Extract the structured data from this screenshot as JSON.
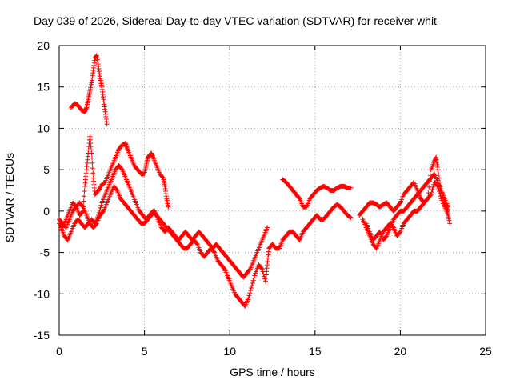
{
  "chart_data": {
    "type": "scatter",
    "title": "Day 039 of 2026, Sidereal Day-to-day VTEC variation (SDTVAR) for receiver whit",
    "xlabel": "GPS time / hours",
    "ylabel": "SDTVAR / TECUs",
    "xlim": [
      0,
      25
    ],
    "ylim": [
      -15,
      20
    ],
    "xticks": [
      "0",
      "5",
      "10",
      "15",
      "20",
      "25"
    ],
    "yticks": [
      "-15",
      "-10",
      "-5",
      "0",
      "5",
      "10",
      "15",
      "20"
    ],
    "grid": true,
    "marker": "+",
    "color": "#ff0000",
    "series": [
      {
        "name": "s1",
        "points": [
          [
            0.7,
            12.5
          ],
          [
            0.9,
            13
          ],
          [
            1.1,
            12.8
          ],
          [
            1.3,
            12.2
          ],
          [
            1.5,
            12
          ],
          [
            1.6,
            12.5
          ],
          [
            1.7,
            13.5
          ],
          [
            1.8,
            14.5
          ],
          [
            1.9,
            15.5
          ],
          [
            2.0,
            17
          ],
          [
            2.1,
            18.5
          ],
          [
            2.2,
            18.8
          ],
          [
            2.3,
            17.5
          ],
          [
            2.4,
            16
          ],
          [
            2.5,
            15
          ],
          [
            2.6,
            13.5
          ],
          [
            2.7,
            12
          ],
          [
            2.8,
            10.5
          ]
        ]
      },
      {
        "name": "s2",
        "points": [
          [
            0,
            -1.5
          ],
          [
            0.2,
            -2
          ],
          [
            0.4,
            -1
          ],
          [
            0.6,
            0
          ],
          [
            0.8,
            1
          ],
          [
            1.0,
            0.5
          ],
          [
            1.2,
            -0.5
          ],
          [
            1.4,
            0
          ],
          [
            1.5,
            3
          ],
          [
            1.6,
            5
          ],
          [
            1.7,
            7
          ],
          [
            1.8,
            9
          ],
          [
            1.9,
            7
          ],
          [
            2.0,
            4
          ],
          [
            2.1,
            2
          ],
          [
            2.3,
            2.5
          ],
          [
            2.5,
            3.2
          ],
          [
            2.7,
            3.5
          ],
          [
            2.9,
            4.5
          ],
          [
            3.1,
            5.5
          ],
          [
            3.3,
            6.5
          ],
          [
            3.5,
            7.5
          ],
          [
            3.7,
            8
          ],
          [
            3.9,
            8.2
          ],
          [
            4.0,
            7.5
          ],
          [
            4.2,
            6.5
          ],
          [
            4.4,
            5.5
          ],
          [
            4.6,
            5
          ],
          [
            4.8,
            4.5
          ],
          [
            5.0,
            4.5
          ],
          [
            5.1,
            5.5
          ],
          [
            5.2,
            6.5
          ],
          [
            5.4,
            7
          ],
          [
            5.5,
            6.5
          ],
          [
            5.7,
            5.5
          ],
          [
            5.9,
            4.5
          ],
          [
            6.1,
            4
          ],
          [
            6.2,
            3
          ],
          [
            6.3,
            1.5
          ],
          [
            6.4,
            0.5
          ]
        ]
      },
      {
        "name": "s3",
        "points": [
          [
            0.1,
            -2
          ],
          [
            0.3,
            -3
          ],
          [
            0.5,
            -3.5
          ],
          [
            0.7,
            -2.5
          ],
          [
            0.9,
            -1.5
          ],
          [
            1.1,
            -1
          ],
          [
            1.3,
            -1.5
          ],
          [
            1.5,
            -2
          ],
          [
            1.7,
            -1.5
          ],
          [
            1.9,
            -1
          ],
          [
            2.1,
            -1.5
          ],
          [
            2.3,
            -0.5
          ],
          [
            2.5,
            1
          ],
          [
            2.7,
            2
          ],
          [
            2.9,
            3
          ],
          [
            3.1,
            4
          ],
          [
            3.3,
            5
          ],
          [
            3.5,
            5.5
          ],
          [
            3.7,
            5
          ],
          [
            3.9,
            4
          ],
          [
            4.1,
            3
          ],
          [
            4.3,
            2
          ],
          [
            4.5,
            1
          ],
          [
            4.7,
            0
          ],
          [
            4.9,
            -0.5
          ],
          [
            5.1,
            -1
          ],
          [
            5.3,
            -0.5
          ],
          [
            5.5,
            0
          ],
          [
            5.7,
            -0.5
          ],
          [
            5.9,
            -1
          ],
          [
            6.1,
            -1.5
          ],
          [
            6.3,
            -2
          ],
          [
            6.5,
            -2.5
          ],
          [
            6.7,
            -3
          ],
          [
            6.9,
            -3.5
          ],
          [
            7.1,
            -4
          ],
          [
            7.3,
            -4.5
          ],
          [
            7.5,
            -4.5
          ],
          [
            7.7,
            -4
          ],
          [
            7.9,
            -3.5
          ],
          [
            8.1,
            -4
          ],
          [
            8.3,
            -5
          ],
          [
            8.5,
            -5.5
          ],
          [
            8.7,
            -5
          ],
          [
            8.9,
            -4.5
          ],
          [
            9.1,
            -5
          ],
          [
            9.3,
            -6
          ],
          [
            9.5,
            -6.5
          ],
          [
            9.7,
            -7
          ],
          [
            9.9,
            -8
          ],
          [
            10.1,
            -9
          ],
          [
            10.3,
            -10
          ],
          [
            10.5,
            -10.5
          ],
          [
            10.7,
            -11
          ],
          [
            10.9,
            -11.5
          ],
          [
            11.1,
            -10.5
          ],
          [
            11.3,
            -9
          ],
          [
            11.5,
            -7.5
          ],
          [
            11.7,
            -6.5
          ],
          [
            11.9,
            -7
          ],
          [
            12.1,
            -8.5
          ],
          [
            12.2,
            -6.5
          ],
          [
            12.3,
            -4.5
          ],
          [
            12.5,
            -4
          ],
          [
            12.7,
            -4.5
          ],
          [
            12.9,
            -4.5
          ],
          [
            13.1,
            -3.5
          ],
          [
            13.3,
            -3
          ],
          [
            13.5,
            -2.5
          ],
          [
            13.7,
            -2.5
          ],
          [
            13.9,
            -3
          ],
          [
            14.1,
            -3.5
          ],
          [
            14.3,
            -2.5
          ],
          [
            14.5,
            -2
          ],
          [
            14.7,
            -1.5
          ],
          [
            14.9,
            -1
          ],
          [
            15.1,
            -0.5
          ],
          [
            15.3,
            -1
          ],
          [
            15.5,
            -1
          ],
          [
            15.7,
            -0.5
          ],
          [
            15.9,
            0
          ],
          [
            16.1,
            0.5
          ],
          [
            16.3,
            0.8
          ],
          [
            16.5,
            0.5
          ],
          [
            16.7,
            0
          ],
          [
            16.9,
            -0.5
          ],
          [
            17.1,
            -0.8
          ]
        ]
      },
      {
        "name": "s4",
        "points": [
          [
            0,
            -1
          ],
          [
            0.2,
            -1.5
          ],
          [
            0.4,
            -2
          ],
          [
            0.6,
            -1
          ],
          [
            0.8,
            0
          ],
          [
            1.0,
            0.5
          ],
          [
            1.2,
            1
          ],
          [
            1.4,
            0.5
          ],
          [
            1.6,
            -0.5
          ],
          [
            1.8,
            -1.5
          ],
          [
            2.0,
            -2
          ],
          [
            2.2,
            -1.5
          ],
          [
            2.4,
            -0.5
          ],
          [
            2.6,
            0
          ],
          [
            2.8,
            1
          ],
          [
            3.0,
            2
          ],
          [
            3.2,
            3
          ],
          [
            3.4,
            2.5
          ],
          [
            3.6,
            1.5
          ],
          [
            3.8,
            1
          ],
          [
            4.0,
            0.5
          ],
          [
            4.2,
            0
          ],
          [
            4.4,
            -0.5
          ],
          [
            4.6,
            -1
          ],
          [
            4.8,
            -1.5
          ],
          [
            5.0,
            -1.5
          ],
          [
            5.2,
            -1
          ],
          [
            5.4,
            -0.5
          ],
          [
            5.6,
            0
          ],
          [
            5.8,
            -1
          ],
          [
            6.0,
            -2
          ],
          [
            6.2,
            -2.5
          ],
          [
            6.4,
            -2
          ],
          [
            6.6,
            -2.5
          ],
          [
            6.8,
            -3
          ],
          [
            7.0,
            -3.5
          ],
          [
            7.2,
            -3
          ],
          [
            7.4,
            -2.5
          ],
          [
            7.6,
            -3
          ],
          [
            7.8,
            -3.5
          ],
          [
            8.0,
            -3
          ],
          [
            8.2,
            -2.5
          ],
          [
            8.4,
            -3
          ],
          [
            8.6,
            -3.5
          ],
          [
            8.8,
            -4
          ],
          [
            9.0,
            -4.5
          ],
          [
            9.2,
            -4
          ],
          [
            9.4,
            -4.5
          ],
          [
            9.6,
            -5
          ],
          [
            9.8,
            -5.5
          ],
          [
            10.0,
            -6
          ],
          [
            10.2,
            -6.5
          ],
          [
            10.4,
            -7
          ],
          [
            10.6,
            -7.5
          ],
          [
            10.8,
            -8
          ],
          [
            11.0,
            -7.5
          ],
          [
            11.2,
            -7
          ],
          [
            11.4,
            -6
          ],
          [
            11.6,
            -5
          ],
          [
            11.8,
            -4
          ],
          [
            12.0,
            -3
          ],
          [
            12.2,
            -2
          ]
        ]
      },
      {
        "name": "s5",
        "points": [
          [
            13.1,
            3.8
          ],
          [
            13.3,
            3.5
          ],
          [
            13.5,
            3
          ],
          [
            13.7,
            2.5
          ],
          [
            13.9,
            2
          ],
          [
            14.1,
            1.5
          ],
          [
            14.3,
            0.5
          ],
          [
            14.5,
            0.5
          ],
          [
            14.7,
            1.5
          ],
          [
            14.9,
            2
          ],
          [
            15.1,
            2.5
          ],
          [
            15.3,
            2.8
          ],
          [
            15.5,
            3
          ],
          [
            15.7,
            2.8
          ],
          [
            15.9,
            2.5
          ],
          [
            16.1,
            2.5
          ],
          [
            16.3,
            2.8
          ],
          [
            16.5,
            3
          ],
          [
            16.7,
            3
          ],
          [
            16.9,
            2.8
          ],
          [
            17.1,
            2.8
          ]
        ]
      },
      {
        "name": "s6",
        "points": [
          [
            17.8,
            -1
          ],
          [
            18.0,
            -2
          ],
          [
            18.2,
            -3
          ],
          [
            18.4,
            -4
          ],
          [
            18.6,
            -4.5
          ],
          [
            18.8,
            -3.5
          ],
          [
            19.0,
            -2.5
          ],
          [
            19.2,
            -2
          ],
          [
            19.4,
            -1.5
          ],
          [
            19.6,
            -2
          ],
          [
            19.8,
            -3
          ],
          [
            20.0,
            -2.5
          ],
          [
            20.2,
            -1.5
          ],
          [
            20.4,
            -1
          ],
          [
            20.6,
            -0.5
          ],
          [
            20.8,
            0
          ],
          [
            21.0,
            0
          ],
          [
            21.2,
            0.5
          ],
          [
            21.4,
            1
          ],
          [
            21.6,
            1.5
          ],
          [
            21.8,
            2
          ],
          [
            22.0,
            3.5
          ],
          [
            22.2,
            3
          ],
          [
            22.4,
            1.5
          ],
          [
            22.6,
            0.5
          ],
          [
            22.8,
            -0.5
          ],
          [
            22.9,
            -1.5
          ]
        ]
      },
      {
        "name": "s7",
        "points": [
          [
            17.6,
            -0.5
          ],
          [
            17.8,
            0
          ],
          [
            18.0,
            0.5
          ],
          [
            18.2,
            1
          ],
          [
            18.4,
            1
          ],
          [
            18.6,
            0.8
          ],
          [
            18.8,
            0.5
          ],
          [
            19.0,
            0.8
          ],
          [
            19.2,
            1
          ],
          [
            19.4,
            0.5
          ],
          [
            19.6,
            0
          ],
          [
            19.8,
            0.5
          ],
          [
            20.0,
            1
          ],
          [
            20.2,
            2
          ],
          [
            20.4,
            2.5
          ],
          [
            20.6,
            3
          ],
          [
            20.8,
            3.5
          ],
          [
            21.0,
            2.5
          ],
          [
            21.2,
            1.5
          ],
          [
            21.4,
            1
          ],
          [
            21.6,
            1.5
          ],
          [
            21.8,
            5
          ],
          [
            22.0,
            6
          ],
          [
            22.1,
            6.5
          ],
          [
            22.2,
            5
          ],
          [
            22.4,
            2.5
          ],
          [
            22.6,
            1
          ],
          [
            22.8,
            0
          ]
        ]
      },
      {
        "name": "s8",
        "points": [
          [
            18.0,
            -1.5
          ],
          [
            18.2,
            -2.5
          ],
          [
            18.4,
            -3.5
          ],
          [
            18.6,
            -3
          ],
          [
            18.8,
            -2.5
          ],
          [
            19.0,
            -3.5
          ],
          [
            19.2,
            -3
          ],
          [
            19.4,
            -2
          ],
          [
            19.6,
            -1
          ],
          [
            19.8,
            -0.5
          ],
          [
            20.0,
            0
          ],
          [
            20.2,
            0
          ],
          [
            20.4,
            0.5
          ],
          [
            20.6,
            1
          ],
          [
            20.8,
            1.5
          ],
          [
            21.0,
            2
          ],
          [
            21.2,
            2.5
          ],
          [
            21.4,
            3
          ],
          [
            21.6,
            3.5
          ],
          [
            21.8,
            4
          ],
          [
            22.0,
            4.5
          ],
          [
            22.2,
            3.5
          ],
          [
            22.4,
            2.5
          ],
          [
            22.6,
            1.5
          ],
          [
            22.8,
            0.5
          ]
        ]
      }
    ]
  }
}
